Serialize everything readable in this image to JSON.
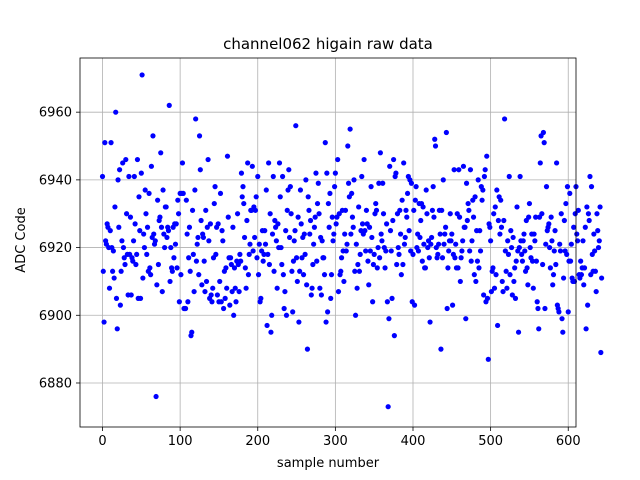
{
  "chart_data": {
    "type": "scatter",
    "title": "channel062 higain raw data",
    "xlabel": "sample number",
    "ylabel": "ADC Code",
    "xlim": [
      -29,
      610
    ],
    "ylim": [
      6867,
      6976
    ],
    "xticks": [
      0,
      100,
      200,
      300,
      400,
      500,
      600
    ],
    "yticks": [
      6880,
      6900,
      6920,
      6940,
      6960
    ],
    "grid": true,
    "marker_color": "#0000ff",
    "series": [
      {
        "y": [
          6941,
          6913,
          6898,
          6951,
          6922,
          6921,
          6927,
          6926,
          6920,
          6908,
          6925,
          6951,
          6920,
          6913,
          6919,
          6911,
          6932,
          6960,
          6905,
          6896,
          6940,
          6926,
          6943,
          6903,
          6913,
          6922,
          6945,
          6920,
          6917,
          6915,
          6946,
          6930,
          6918,
          6906,
          6941,
          6918,
          6929,
          6906,
          6917,
          6916,
          6922,
          6941,
          6927,
          6915,
          6918,
          6946,
          6905,
          6935,
          6925,
          6905,
          6942,
          6971,
          6911,
          6924,
          6920,
          6937,
          6930,
          6918,
          6926,
          6913,
          6936,
          6914,
          6912,
          6944,
          6923,
          6953,
          6924,
          6921,
          6922,
          6876,
          6909,
          6934,
          6915,
          6928,
          6929,
          6948,
          6926,
          6907,
          6937,
          6924,
          6920,
          6932,
          6932,
          6923,
          6926,
          6925,
          6962,
          6910,
          6920,
          6914,
          6913,
          6926,
          6917,
          6927,
          6921,
          6927,
          6914,
          6934,
          6930,
          6904,
          6936,
          6912,
          6936,
          6945,
          6936,
          6902,
          6902,
          6902,
          6934,
          6924,
          6904,
          6917,
          6926,
          6913,
          6894,
          6895,
          6931,
          6918,
          6907,
          6937,
          6958,
          6916,
          6921,
          6923,
          6912,
          6953,
          6943,
          6928,
          6909,
          6924,
          6923,
          6916,
          6907,
          6931,
          6910,
          6926,
          6946,
          6922,
          6905,
          6927,
          6906,
          6904,
          6908,
          6917,
          6933,
          6938,
          6918,
          6926,
          6906,
          6927,
          6904,
          6910,
          6936,
          6904,
          6925,
          6922,
          6902,
          6913,
          6905,
          6914,
          6908,
          6947,
          6929,
          6917,
          6903,
          6917,
          6915,
          6907,
          6926,
          6900,
          6914,
          6908,
          6904,
          6916,
          6930,
          6915,
          6907,
          6918,
          6916,
          6942,
          6935,
          6938,
          6933,
          6923,
          6914,
          6908,
          6928,
          6945,
          6912,
          6918,
          6921,
          6931,
          6931,
          6944,
          6919,
          6932,
          6923,
          6931,
          6935,
          6917,
          6941,
          6912,
          6921,
          6904,
          6905,
          6919,
          6925,
          6916,
          6918,
          6925,
          6921,
          6937,
          6897,
          6918,
          6945,
          6915,
          6930,
          6895,
          6900,
          6924,
          6941,
          6913,
          6928,
          6926,
          6922,
          6908,
          6927,
          6920,
          6945,
          6935,
          6920,
          6915,
          6941,
          6912,
          6902,
          6907,
          6925,
          6900,
          6931,
          6937,
          6943,
          6923,
          6938,
          6930,
          6913,
          6901,
          6916,
          6922,
          6925,
          6956,
          6917,
          6910,
          6929,
          6898,
          6913,
          6937,
          6927,
          6917,
          6923,
          6912,
          6924,
          6918,
          6940,
          6909,
          6890,
          6935,
          6931,
          6924,
          6928,
          6906,
          6908,
          6915,
          6921,
          6926,
          6929,
          6942,
          6916,
          6933,
          6939,
          6930,
          6908,
          6923,
          6906,
          6922,
          6917,
          6917,
          6912,
          6951,
          6898,
          6942,
          6901,
          6933,
          6926,
          6936,
          6905,
          6912,
          6929,
          6922,
          6924,
          6938,
          6942,
          6927,
          6929,
          6946,
          6907,
          6930,
          6912,
          6913,
          6917,
          6931,
          6919,
          6910,
          6924,
          6931,
          6919,
          6921,
          6950,
          6939,
          6935,
          6955,
          6924,
          6936,
          6929,
          6926,
          6940,
          6913,
          6900,
          6921,
          6908,
          6915,
          6932,
          6913,
          6918,
          6925,
          6941,
          6927,
          6924,
          6946,
          6925,
          6919,
          6931,
          6927,
          6916,
          6909,
          6926,
          6919,
          6938,
          6923,
          6904,
          6915,
          6918,
          6930,
          6933,
          6931,
          6914,
          6920,
          6939,
          6917,
          6948,
          6924,
          6922,
          6939,
          6930,
          6920,
          6914,
          6919,
          6927,
          6904,
          6873,
          6899,
          6944,
          6925,
          6919,
          6905,
          6928,
          6946,
          6894,
          6941,
          6942,
          6915,
          6930,
          6920,
          6918,
          6931,
          6924,
          6912,
          6934,
          6915,
          6945,
          6921,
          6923,
          6931,
          6929,
          6936,
          6941,
          6925,
          6940,
          6919,
          6939,
          6904,
          6918,
          6931,
          6903,
          6934,
          6938,
          6920,
          6924,
          6919,
          6933,
          6923,
          6928,
          6933,
          6916,
          6932,
          6921,
          6914,
          6914,
          6937,
          6930,
          6920,
          6922,
          6917,
          6898,
          6921,
          6923,
          6931,
          6938,
          6929,
          6952,
          6950,
          6920,
          6917,
          6918,
          6921,
          6931,
          6924,
          6890,
          6931,
          6917,
          6940,
          6921,
          6924,
          6926,
          6954,
          6902,
          6914,
          6919,
          6922,
          6930,
          6922,
          6924,
          6903,
          6918,
          6943,
          6917,
          6921,
          6914,
          6930,
          6914,
          6943,
          6929,
          6910,
          6917,
          6919,
          6922,
          6944,
          6926,
          6926,
          6899,
          6939,
          6928,
          6933,
          6931,
          6919,
          6943,
          6916,
          6922,
          6934,
          6929,
          6912,
          6935,
          6910,
          6925,
          6916,
          6940,
          6914,
          6925,
          6919,
          6938,
          6934,
          6937,
          6906,
          6941,
          6943,
          6904,
          6947,
          6905,
          6887,
          6927,
          6926,
          6922,
          6907,
          6913,
          6914,
          6930,
          6908,
          6932,
          6912,
          6937,
          6897,
          6928,
          6935,
          6924,
          6934,
          6926,
          6910,
          6907,
          6928,
          6958,
          6919,
          6913,
          6908,
          6922,
          6918,
          6941,
          6912,
          6925,
          6920,
          6906,
          6923,
          6910,
          6914,
          6905,
          6916,
          6932,
          6919,
          6895,
          6920,
          6941,
          6922,
          6918,
          6916,
          6922,
          6924,
          6919,
          6913,
          6928,
          6914,
          6909,
          6929,
          6933,
          6920,
          6917,
          6924,
          6916,
          6908,
          6924,
          6922,
          6929,
          6916,
          6904,
          6902,
          6896,
          6929,
          6945,
          6953,
          6930,
          6915,
          6954,
          6951,
          6902,
          6921,
          6938,
          6925,
          6926,
          6927,
          6920,
          6914,
          6929,
          6922,
          6909,
          6912,
          6919,
          6925,
          6915,
          6945,
          6903,
          6902,
          6901,
          6921,
          6919,
          6930,
          6899,
          6895,
          6911,
          6928,
          6919,
          6933,
          6918,
          6938,
          6901,
          6916,
          6936,
          6916,
          6921,
          6911,
          6910,
          6926,
          6910,
          6930,
          6938,
          6924,
          6922,
          6931,
          6912,
          6911,
          6916,
          6912,
          6914,
          6922,
          6909,
          6914,
          6926,
          6896,
          6932,
          6903,
          6930,
          6928,
          6941,
          6912,
          6938,
          6918,
          6913,
          6924,
          6919,
          6913,
          6907,
          6930,
          6925,
          6920,
          6922,
          6932,
          6889,
          6911
        ]
      }
    ]
  }
}
